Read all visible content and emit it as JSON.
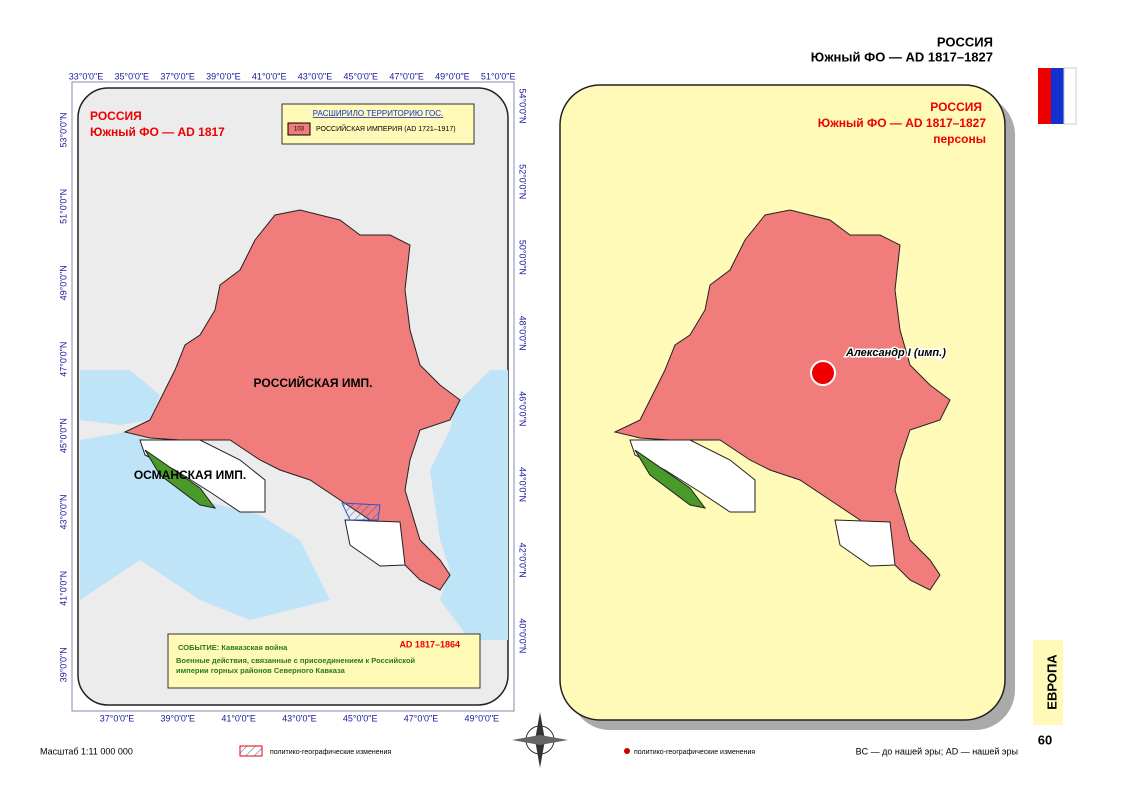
{
  "header": {
    "title": "РОССИЯ",
    "subtitle": "Южный ФО — AD 1817–1827"
  },
  "left_map": {
    "title": "РОССИЯ",
    "subtitle": "Южный ФО — AD 1817",
    "legend": {
      "heading": "РАСШИРИЛО ТЕРРИТОРИЮ ГОС.",
      "code": "103",
      "entry": "РОССИЙСКАЯ ИМПЕРИЯ (AD 1721–1917)"
    },
    "labels": [
      "РОССИЙСКАЯ ИМП.",
      "ОСМАНСКАЯ ИМП."
    ],
    "event": {
      "title": "СОБЫТИЕ: Кавказская война",
      "date": "AD 1817–1864",
      "text": "Военные действия, связанные с присоединением к Российской империи горных районов Северного Кавказа"
    },
    "top_lon": [
      "33°0'0\"E",
      "35°0'0\"E",
      "37°0'0\"E",
      "39°0'0\"E",
      "41°0'0\"E",
      "43°0'0\"E",
      "45°0'0\"E",
      "47°0'0\"E",
      "49°0'0\"E",
      "51°0'0\"E"
    ],
    "bottom_lon": [
      "37°0'0\"E",
      "39°0'0\"E",
      "41°0'0\"E",
      "43°0'0\"E",
      "45°0'0\"E",
      "47°0'0\"E",
      "49°0'0\"E"
    ],
    "left_lat": [
      "53°0'0\"N",
      "51°0'0\"N",
      "49°0'0\"N",
      "47°0'0\"N",
      "45°0'0\"N",
      "43°0'0\"N",
      "41°0'0\"N",
      "39°0'0\"N"
    ],
    "right_lat": [
      "54°0'0\"N",
      "52°0'0\"N",
      "50°0'0\"N",
      "48°0'0\"N",
      "46°0'0\"N",
      "44°0'0\"N",
      "42°0'0\"N",
      "40°0'0\"N"
    ]
  },
  "right_map": {
    "title": "РОССИЯ",
    "subtitle": "Южный ФО — AD 1817–1827",
    "category": "персоны",
    "person": "Александр I (имп.)"
  },
  "footer": {
    "scale": "Масштаб 1:11 000 000",
    "legend_changes": "политико-географические изменения",
    "legend_points": "политико-географические изменения",
    "era_note": "BC — до нашей эры; AD — нашей эры"
  },
  "side": {
    "region": "ЕВРОПА",
    "page": "60"
  }
}
